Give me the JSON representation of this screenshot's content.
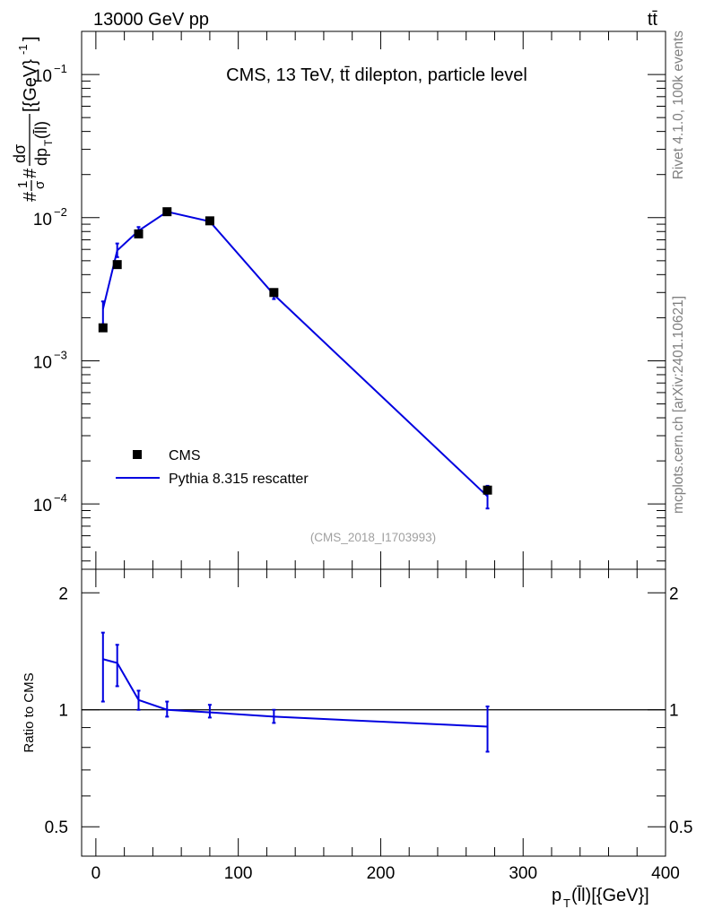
{
  "header": {
    "left": "13000 GeV pp",
    "right": "tt̄"
  },
  "side_labels": {
    "rivet": "Rivet 4.1.0,  100k events",
    "mcplots": "mcplots.cern.ch [arXiv:2401.10621]"
  },
  "colors": {
    "data": "#000000",
    "mc": "#0000e0",
    "watermark": "#808080"
  },
  "chart_data": [
    {
      "type": "line",
      "title": "CMS, 13 TeV, tt̄ dilepton, particle level",
      "watermark": "(CMS_2018_I1703993)",
      "ylabel": "#1/σ# dσ/dp_T(ll) [{GeV}^-1]",
      "ylabel_parts": {
        "prefix": "#",
        "frac_num": "1",
        "frac_den": "σ",
        "mid": "#",
        "deriv_num": "dσ",
        "deriv_den": "dp",
        "deriv_den_sub": "T",
        "deriv_den_tail": "(l̄l)",
        "unit": "[{GeV}",
        "unit_sup": "-1",
        "unit_end": "]"
      },
      "yscale": "log",
      "ylim": [
        3.5e-05,
        0.2
      ],
      "xlim": [
        -10,
        400
      ],
      "y_ticks": [
        {
          "value": 0.1,
          "base": "10",
          "exp": "−1"
        },
        {
          "value": 0.01,
          "base": "10",
          "exp": "−2"
        },
        {
          "value": 0.001,
          "base": "10",
          "exp": "−3"
        },
        {
          "value": 0.0001,
          "base": "10",
          "exp": "−4"
        }
      ],
      "legend": {
        "position": "bottom-left",
        "entries": [
          "CMS",
          "Pythia 8.315 rescatter"
        ]
      },
      "series": [
        {
          "name": "CMS",
          "kind": "points",
          "x": [
            5,
            15,
            30,
            50,
            80,
            125,
            275
          ],
          "y": [
            0.0017,
            0.0047,
            0.0077,
            0.011,
            0.0095,
            0.003,
            0.000125
          ]
        },
        {
          "name": "Pythia 8.315 rescatter",
          "kind": "line",
          "x": [
            5,
            15,
            30,
            50,
            80,
            125,
            275
          ],
          "y": [
            0.0023,
            0.0059,
            0.0081,
            0.011,
            0.0094,
            0.0029,
            0.000113
          ],
          "y_err_low": [
            0.0018,
            0.0053,
            0.0076,
            0.0106,
            0.0091,
            0.0027,
            9.3e-05
          ],
          "y_err_high": [
            0.0026,
            0.0066,
            0.0086,
            0.0114,
            0.0097,
            0.0031,
            0.000134
          ]
        }
      ]
    },
    {
      "type": "line",
      "ylabel": "Ratio to CMS",
      "xlabel": "p_T(ll)[{GeV}]",
      "xlabel_parts": {
        "main": "p",
        "sub": "T",
        "tail": "(l̄l)[{GeV}]"
      },
      "yscale": "log",
      "ylim": [
        0.42,
        2.3
      ],
      "xlim": [
        -10,
        400
      ],
      "reference_line": 1,
      "y_ticks": [
        {
          "value": 2,
          "label": "2"
        },
        {
          "value": 1,
          "label": "1"
        },
        {
          "value": 0.5,
          "label": "0.5"
        }
      ],
      "x_ticks": [
        {
          "value": 0,
          "label": "0"
        },
        {
          "value": 100,
          "label": "100"
        },
        {
          "value": 200,
          "label": "200"
        },
        {
          "value": 300,
          "label": "300"
        },
        {
          "value": 400,
          "label": "400"
        }
      ],
      "series": [
        {
          "name": "Pythia 8.315 rescatter",
          "kind": "line",
          "x": [
            5,
            15,
            30,
            50,
            80,
            125,
            275
          ],
          "y": [
            1.35,
            1.32,
            1.06,
            1.0,
            0.985,
            0.96,
            0.905
          ],
          "y_err_low": [
            1.05,
            1.15,
            1.0,
            0.96,
            0.955,
            0.925,
            0.78
          ],
          "y_err_high": [
            1.58,
            1.47,
            1.12,
            1.05,
            1.03,
            1.0,
            1.02
          ]
        }
      ]
    }
  ]
}
